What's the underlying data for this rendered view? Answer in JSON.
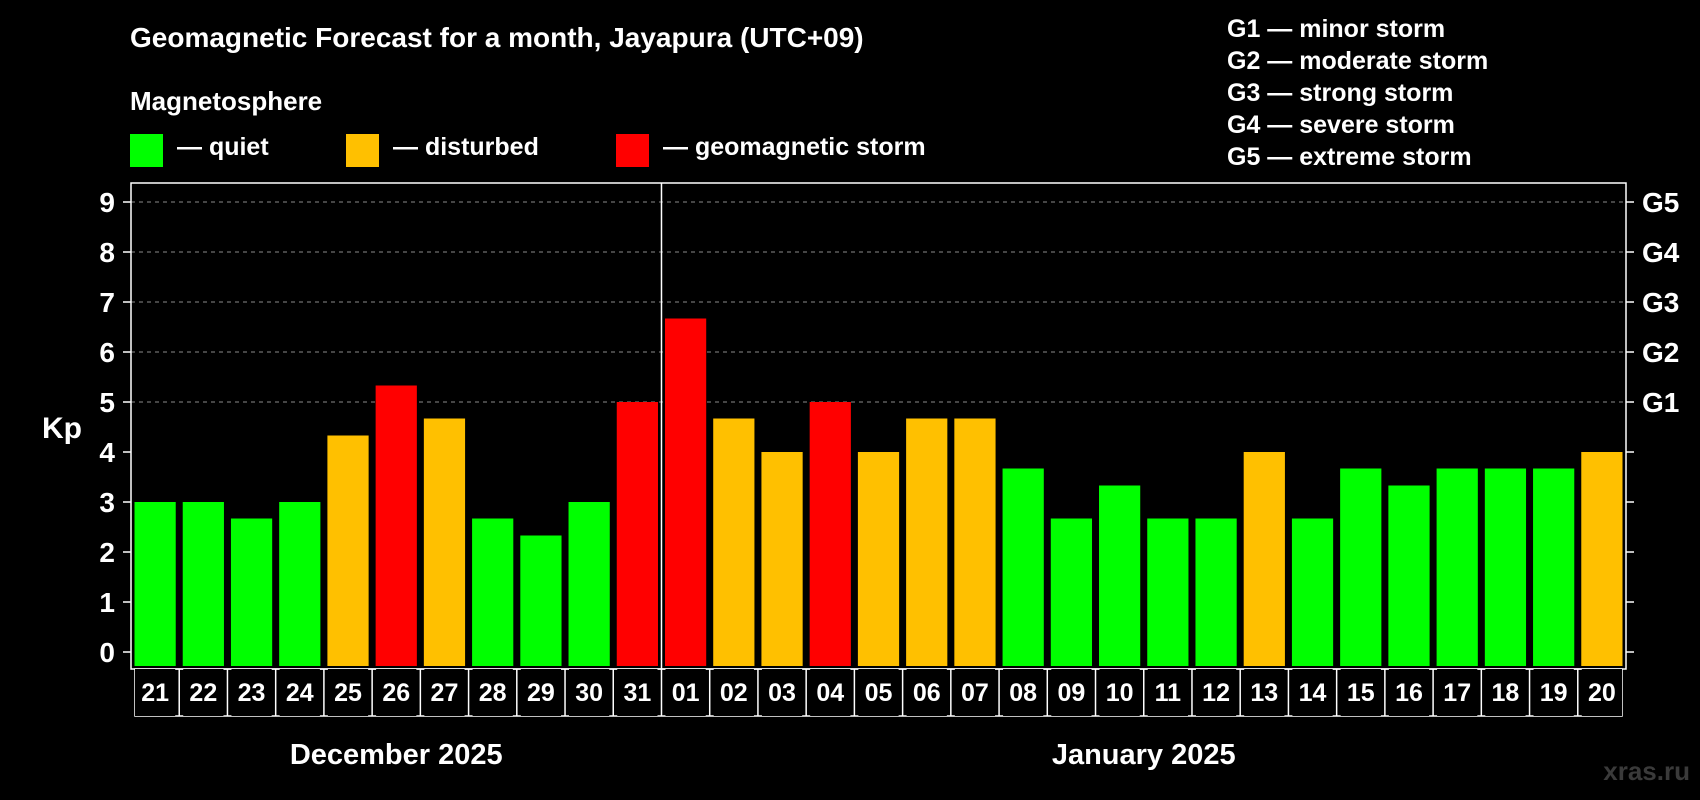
{
  "chart_data": {
    "type": "bar",
    "title": "Geomagnetic Forecast for a month, Jayapura (UTC+09)",
    "ylabel": "Kp",
    "ylim": [
      0,
      9
    ],
    "yticks": [
      "0",
      "1",
      "2",
      "3",
      "4",
      "5",
      "6",
      "7",
      "8",
      "9"
    ],
    "storm_levels": [
      {
        "label": "G1",
        "kp": 5
      },
      {
        "label": "G2",
        "kp": 6
      },
      {
        "label": "G3",
        "kp": 7
      },
      {
        "label": "G4",
        "kp": 8
      },
      {
        "label": "G5",
        "kp": 9
      }
    ],
    "categories": [
      "21",
      "22",
      "23",
      "24",
      "25",
      "26",
      "27",
      "28",
      "29",
      "30",
      "31",
      "01",
      "02",
      "03",
      "04",
      "05",
      "06",
      "07",
      "08",
      "09",
      "10",
      "11",
      "12",
      "13",
      "14",
      "15",
      "16",
      "17",
      "18",
      "19",
      "20"
    ],
    "values": [
      3.0,
      3.0,
      2.67,
      3.0,
      4.33,
      5.33,
      4.67,
      2.67,
      2.33,
      3.0,
      5.0,
      6.67,
      4.67,
      4.0,
      5.0,
      4.0,
      4.67,
      4.67,
      3.67,
      2.67,
      3.33,
      2.67,
      2.67,
      4.0,
      2.67,
      3.67,
      3.33,
      3.67,
      3.67,
      3.67,
      4.0
    ],
    "status": [
      "quiet",
      "quiet",
      "quiet",
      "quiet",
      "disturbed",
      "storm",
      "disturbed",
      "quiet",
      "quiet",
      "quiet",
      "storm",
      "storm",
      "disturbed",
      "disturbed",
      "storm",
      "disturbed",
      "disturbed",
      "disturbed",
      "quiet",
      "quiet",
      "quiet",
      "quiet",
      "quiet",
      "disturbed",
      "quiet",
      "quiet",
      "quiet",
      "quiet",
      "quiet",
      "quiet",
      "disturbed"
    ],
    "month_groups": [
      {
        "label": "December 2025",
        "count": 11
      },
      {
        "label": "January 2025",
        "count": 20
      }
    ]
  },
  "legend": {
    "heading": "Magnetosphere",
    "items": [
      {
        "label": "— quiet",
        "color": "#00ff00"
      },
      {
        "label": "— disturbed",
        "color": "#ffc000"
      },
      {
        "label": "— geomagnetic storm",
        "color": "#ff0000"
      }
    ]
  },
  "g_scale": [
    "G1 — minor storm",
    "G2 — moderate storm",
    "G3 — strong storm",
    "G4 — severe storm",
    "G5 — extreme storm"
  ],
  "colors": {
    "quiet": "#00ff00",
    "disturbed": "#ffc000",
    "storm": "#ff0000"
  },
  "watermark": "xras.ru"
}
